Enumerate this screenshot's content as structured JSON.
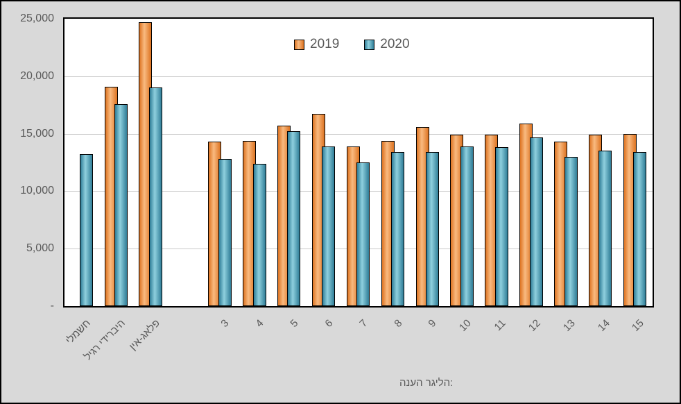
{
  "chart_data": {
    "type": "bar",
    "title": "",
    "categories": [
      "חשמלי",
      "היברידי רגיל",
      "פלאג-אין",
      "3",
      "4",
      "5",
      "6",
      "7",
      "8",
      "9",
      "10",
      "11",
      "12",
      "13",
      "14",
      "15"
    ],
    "series": [
      {
        "name": "2019",
        "values": [
          null,
          19100,
          24700,
          14300,
          14400,
          15700,
          16700,
          13900,
          14400,
          15600,
          14900,
          14900,
          15900,
          14300,
          14900,
          15000
        ]
      },
      {
        "name": "2020",
        "values": [
          13200,
          17600,
          19000,
          12800,
          12400,
          15200,
          13900,
          12500,
          13400,
          13400,
          13900,
          13800,
          14700,
          13000,
          13500,
          13400
        ]
      }
    ],
    "xlabel": "הנעה רגילה:",
    "ylabel": "",
    "ylim": [
      0,
      25000
    ],
    "ytick_step": 5000,
    "ytick_labels": [
      "-",
      "5,000",
      "10,000",
      "15,000",
      "20,000",
      "25,000"
    ],
    "grid": true,
    "legend_position": "top-center",
    "gap_after_category_index": 2
  },
  "colors": {
    "background": "#D9D9D9",
    "plot_background": "#FFFFFF",
    "border": "#000000",
    "gridline": "#C9C9C9",
    "text": "#595959",
    "series_2019_fill": "#ED7D31",
    "series_2019_highlight": "#F9BA80",
    "series_2019_shadow": "#DD7321",
    "series_2020_fill": "#5BA8C4",
    "series_2020_highlight": "#8FD0DE",
    "series_2020_shadow": "#2F7D97"
  }
}
